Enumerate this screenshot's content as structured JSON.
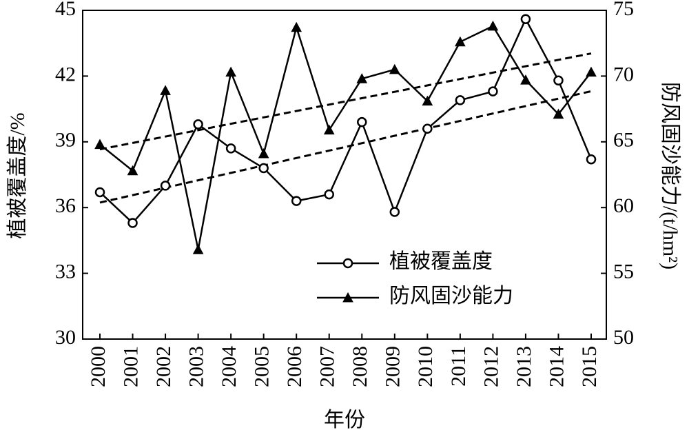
{
  "chart_data": {
    "type": "line",
    "xlabel": "年份",
    "ylabel": "植被覆盖度/%",
    "y2label": "防风固沙能力/(t/hm²)",
    "categories": [
      "2000",
      "2001",
      "2002",
      "2003",
      "2004",
      "2005",
      "2006",
      "2007",
      "2008",
      "2009",
      "2010",
      "2011",
      "2012",
      "2013",
      "2014",
      "2015"
    ],
    "series": [
      {
        "name": "植被覆盖度",
        "color": "#000000",
        "marker": "circle",
        "trendline": true,
        "axis": "y",
        "values": [
          36.7,
          35.3,
          37.0,
          39.8,
          38.7,
          37.8,
          36.3,
          36.6,
          39.9,
          35.8,
          39.6,
          40.9,
          41.3,
          44.6,
          41.8,
          38.2
        ]
      },
      {
        "name": "防风固沙能力",
        "color": "#000000",
        "marker": "triangle",
        "trendline": true,
        "axis": "y2",
        "values": [
          64.8,
          62.8,
          68.9,
          56.8,
          70.3,
          64.1,
          73.7,
          65.9,
          69.8,
          70.5,
          68.1,
          72.6,
          73.8,
          69.7,
          67.1,
          70.3
        ]
      }
    ],
    "ylim": [
      30,
      45
    ],
    "yticks": [
      30,
      33,
      36,
      39,
      42,
      45
    ],
    "y2lim": [
      50,
      75
    ],
    "y2ticks": [
      50,
      55,
      60,
      65,
      70,
      75
    ],
    "legend": "lower-right"
  }
}
